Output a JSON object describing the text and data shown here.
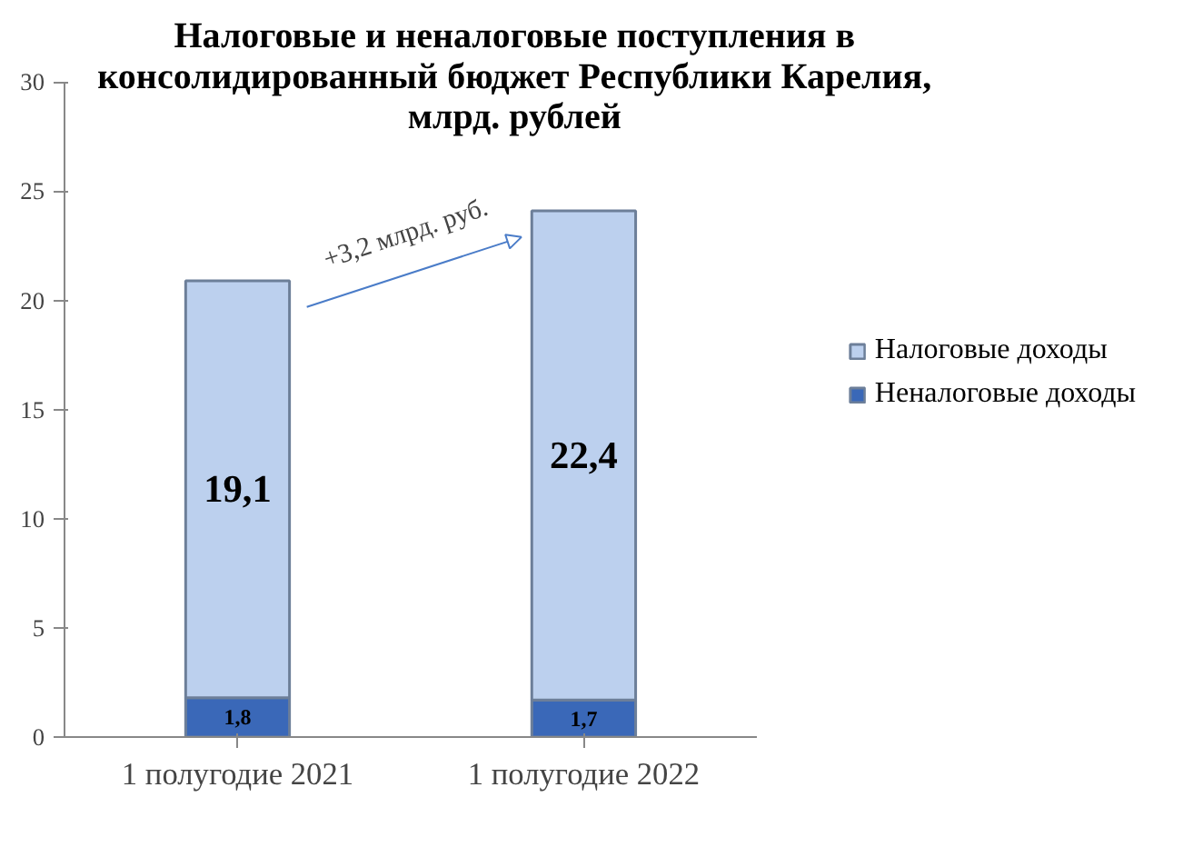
{
  "chart_data": {
    "type": "bar",
    "stacked": true,
    "title": "Налоговые и неналоговые поступления в консолидированный бюджет Республики Карелия, млрд. рублей",
    "categories": [
      "1 полугодие 2021",
      "1 полугодие 2022"
    ],
    "series": [
      {
        "name": "Неналоговые доходы",
        "color": "#3a68b8",
        "values": [
          1.8,
          1.7
        ],
        "value_labels": [
          "1,8",
          "1,7"
        ]
      },
      {
        "name": "Налоговые доходы",
        "color": "#bcd0ee",
        "values": [
          19.1,
          22.4
        ],
        "value_labels": [
          "19,1",
          "22,4"
        ]
      }
    ],
    "ylim": [
      0,
      30
    ],
    "yticks": [
      0,
      5,
      10,
      15,
      20,
      25,
      30
    ],
    "grid": false,
    "legend": "right",
    "annotations": [
      "+3,2 млрд. руб."
    ]
  }
}
